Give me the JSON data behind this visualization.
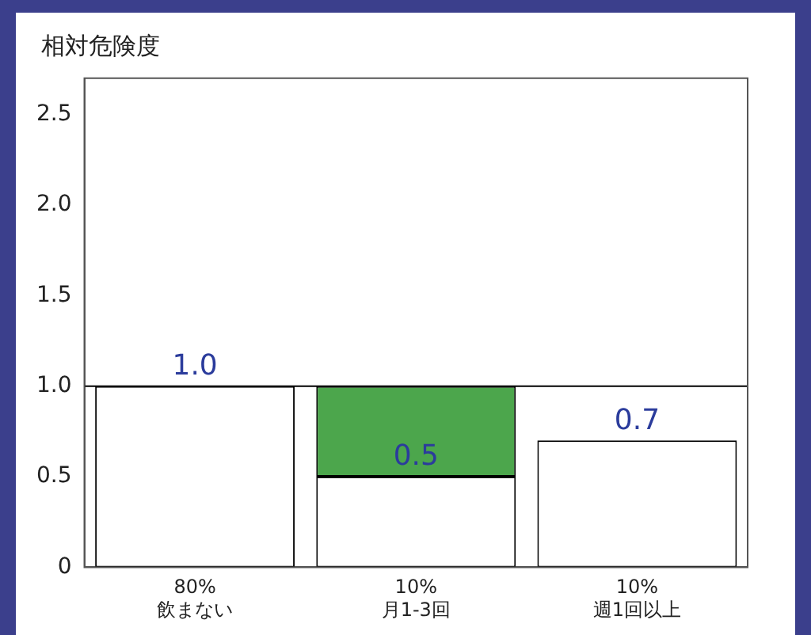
{
  "chart_data": {
    "type": "bar",
    "title": "相対危険度",
    "categories": [
      "80%\n飲まない",
      "10%\n月1-3回",
      "10%\n週1回以上"
    ],
    "stacked": true,
    "series": [
      {
        "color": "#ffffff",
        "values": [
          1.0,
          0.5,
          0.7
        ],
        "value_labels": [
          "1.0",
          "0.5",
          "0.7"
        ]
      },
      {
        "color": "#4ca64c",
        "values": [
          null,
          0.5,
          null
        ]
      }
    ],
    "ylim": [
      0,
      2.7
    ],
    "yticks": [
      0,
      {
        "value": 0.5,
        "label": "0.5"
      },
      {
        "value": 1,
        "label": "1.0"
      },
      {
        "value": 1.5,
        "label": "1.5"
      },
      {
        "value": 2,
        "label": "2.0"
      },
      {
        "value": 2.5,
        "label": "2.5"
      }
    ],
    "ref_lines": [
      {
        "axis": "y",
        "value": 1.0,
        "color": "#000000"
      }
    ],
    "grid": false,
    "legend": false
  }
}
